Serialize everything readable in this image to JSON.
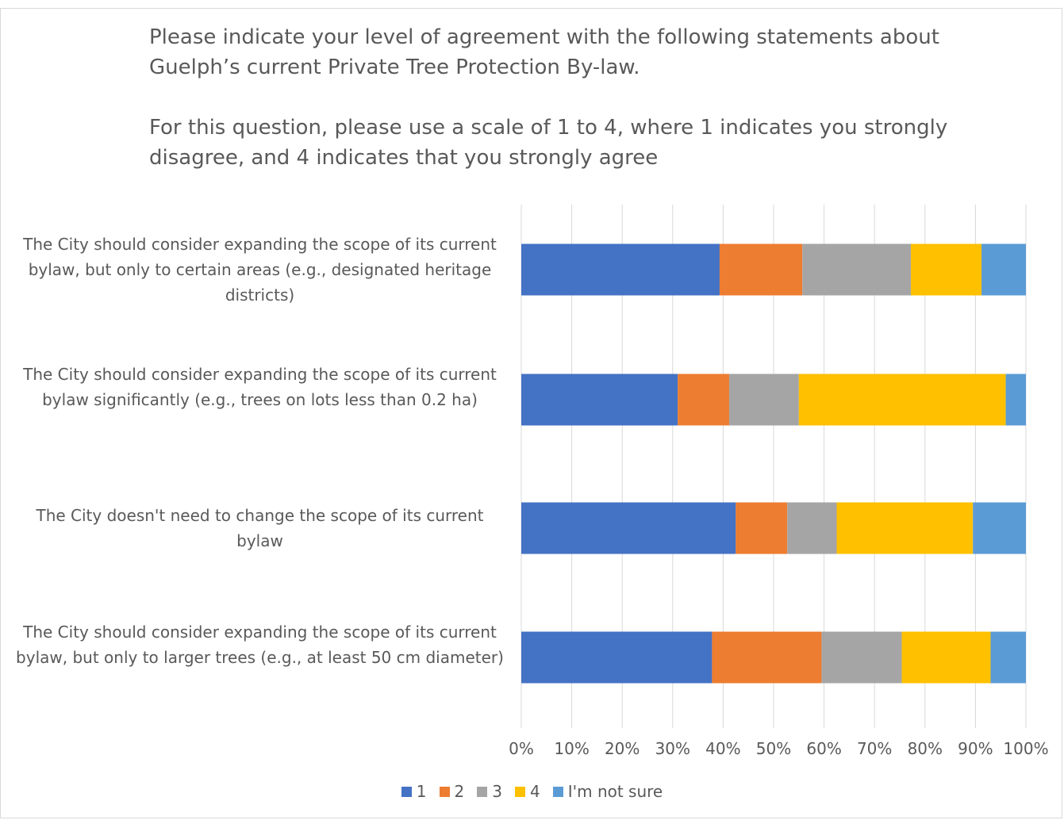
{
  "chart_data": {
    "type": "bar",
    "orientation": "horizontal",
    "stacked": "percent",
    "title": "Please indicate your level of agreement with the following statements about Guelph’s current Private Tree Protection By-law.\n\nFor this question, please use a scale of 1 to 4, where 1 indicates you strongly disagree, and 4 indicates that you strongly agree",
    "categories": [
      "The City should consider expanding the scope of its current bylaw, but only to certain areas (e.g., designated heritage districts)",
      "The City should consider expanding the scope of its current bylaw significantly (e.g., trees on lots less than 0.2 ha)",
      "The City doesn't need to change the scope of its current bylaw",
      "The City should consider expanding the scope of its current bylaw, but only to larger trees (e.g., at least 50 cm diameter)"
    ],
    "series": [
      {
        "name": "1",
        "color": "#4472C4",
        "values": [
          39.3,
          31.0,
          42.5,
          37.8
        ]
      },
      {
        "name": "2",
        "color": "#ED7D31",
        "values": [
          16.4,
          10.2,
          10.2,
          21.7
        ]
      },
      {
        "name": "3",
        "color": "#A5A5A5",
        "values": [
          21.5,
          13.8,
          9.8,
          15.9
        ]
      },
      {
        "name": "4",
        "color": "#FFC000",
        "values": [
          14.0,
          41.0,
          27.0,
          17.6
        ]
      },
      {
        "name": "I'm not sure",
        "color": "#5B9BD5",
        "values": [
          8.8,
          4.0,
          10.5,
          7.0
        ]
      }
    ],
    "xlim": [
      0,
      100
    ],
    "x_ticks": [
      "0%",
      "10%",
      "20%",
      "30%",
      "40%",
      "50%",
      "60%",
      "70%",
      "80%",
      "90%",
      "100%"
    ],
    "grid": true,
    "legend_position": "bottom"
  }
}
